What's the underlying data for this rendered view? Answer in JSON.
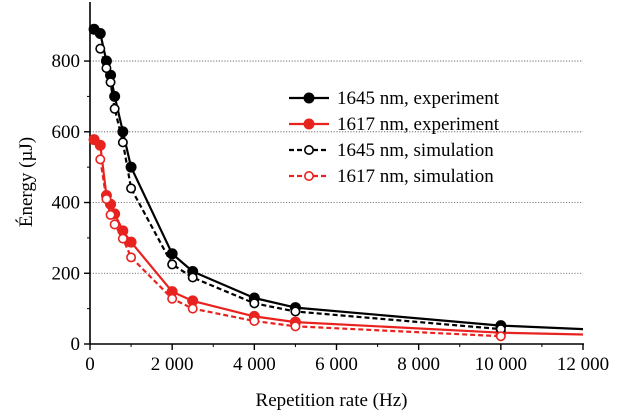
{
  "chart_data": {
    "type": "line",
    "xlabel": "Repetition rate (Hz)",
    "ylabel": "Énergy (µJ)",
    "xlim": [
      0,
      12000
    ],
    "ylim": [
      0,
      950
    ],
    "xticks": [
      0,
      2000,
      4000,
      6000,
      8000,
      10000,
      12000
    ],
    "xtick_labels": [
      "0",
      "2 000",
      "4 000",
      "6 000",
      "8 000",
      "10 000",
      "12 000"
    ],
    "yticks": [
      0,
      200,
      400,
      600,
      800
    ],
    "ytick_labels": [
      "0",
      "200",
      "400",
      "600",
      "800"
    ],
    "grid": "horizontal dotted lines at 200, 400, 600, 800",
    "legend_position": "upper-right",
    "series": [
      {
        "name": "1645 nm, experiment",
        "color": "#000000",
        "line": "solid",
        "marker": "filled-circle",
        "points": [
          [
            100,
            890
          ],
          [
            250,
            878
          ],
          [
            400,
            800
          ],
          [
            500,
            760
          ],
          [
            600,
            700
          ],
          [
            800,
            600
          ],
          [
            1000,
            500
          ],
          [
            2000,
            255
          ],
          [
            2500,
            205
          ],
          [
            4000,
            130
          ],
          [
            5000,
            103
          ],
          [
            10000,
            52
          ]
        ],
        "trend_end": [
          12000,
          42
        ]
      },
      {
        "name": "1617 nm, experiment",
        "color": "#e8231f",
        "line": "solid",
        "marker": "filled-circle",
        "points": [
          [
            100,
            578
          ],
          [
            250,
            562
          ],
          [
            400,
            420
          ],
          [
            500,
            395
          ],
          [
            600,
            368
          ],
          [
            800,
            320
          ],
          [
            1000,
            288
          ],
          [
            2000,
            148
          ],
          [
            2500,
            122
          ],
          [
            4000,
            78
          ],
          [
            5000,
            62
          ],
          [
            10000,
            32
          ]
        ],
        "trend_end": [
          12000,
          27
        ]
      },
      {
        "name": "1645 nm, simulation",
        "color": "#000000",
        "line": "dashed",
        "marker": "open-circle",
        "points": [
          [
            250,
            835
          ],
          [
            400,
            780
          ],
          [
            500,
            740
          ],
          [
            600,
            665
          ],
          [
            800,
            570
          ],
          [
            1000,
            440
          ],
          [
            2000,
            225
          ],
          [
            2500,
            188
          ],
          [
            4000,
            115
          ],
          [
            5000,
            92
          ],
          [
            10000,
            42
          ]
        ]
      },
      {
        "name": "1617 nm, simulation",
        "color": "#e8231f",
        "line": "dashed",
        "marker": "open-circle",
        "points": [
          [
            250,
            522
          ],
          [
            400,
            410
          ],
          [
            500,
            365
          ],
          [
            600,
            338
          ],
          [
            800,
            298
          ],
          [
            1000,
            245
          ],
          [
            2000,
            128
          ],
          [
            2500,
            100
          ],
          [
            4000,
            65
          ],
          [
            5000,
            50
          ],
          [
            10000,
            22
          ]
        ]
      }
    ]
  }
}
